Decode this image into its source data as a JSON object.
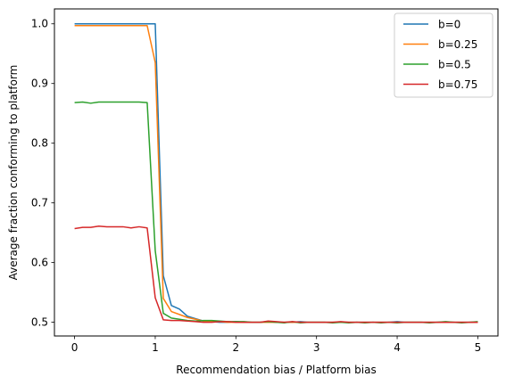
{
  "chart_data": {
    "type": "line",
    "title": "",
    "xlabel": "Recommendation bias / Platform bias",
    "ylabel": "Average fraction conforming to platform",
    "xlim": [
      -0.25,
      5.25
    ],
    "ylim": [
      0.477,
      1.025
    ],
    "grid": false,
    "legend_position": "top-right",
    "x_ticks": [
      0,
      1,
      2,
      3,
      4,
      5
    ],
    "x_tick_labels": [
      "0",
      "1",
      "2",
      "3",
      "4",
      "5"
    ],
    "y_ticks": [
      0.5,
      0.6,
      0.7,
      0.8,
      0.9,
      1.0
    ],
    "y_tick_labels": [
      "0.5",
      "0.6",
      "0.7",
      "0.8",
      "0.9",
      "1.0"
    ],
    "x": [
      0.0,
      0.1,
      0.2,
      0.3,
      0.4,
      0.5,
      0.6,
      0.7,
      0.8,
      0.9,
      1.0,
      1.1,
      1.2,
      1.3,
      1.4,
      1.5,
      1.6,
      1.7,
      1.8,
      1.9,
      2.0,
      2.1,
      2.2,
      2.3,
      2.4,
      2.5,
      2.6,
      2.7,
      2.8,
      2.9,
      3.0,
      3.1,
      3.2,
      3.3,
      3.4,
      3.5,
      3.6,
      3.7,
      3.8,
      3.9,
      4.0,
      4.1,
      4.2,
      4.3,
      4.4,
      4.5,
      4.6,
      4.7,
      4.8,
      4.9,
      5.0
    ],
    "series": [
      {
        "name": "b=0",
        "color": "#1f77b4",
        "values": [
          1.0,
          1.0,
          1.0,
          1.0,
          1.0,
          1.0,
          1.0,
          1.0,
          1.0,
          1.0,
          1.0,
          0.578,
          0.528,
          0.522,
          0.51,
          0.506,
          0.502,
          0.501,
          0.5,
          0.5,
          0.501,
          0.5,
          0.5,
          0.5,
          0.501,
          0.5,
          0.5,
          0.5,
          0.501,
          0.5,
          0.5,
          0.5,
          0.5,
          0.5,
          0.5,
          0.5,
          0.5,
          0.5,
          0.5,
          0.5,
          0.501,
          0.5,
          0.5,
          0.5,
          0.5,
          0.5,
          0.5,
          0.5,
          0.5,
          0.5,
          0.5
        ]
      },
      {
        "name": "b=0.25",
        "color": "#ff7f0e",
        "values": [
          0.997,
          0.997,
          0.997,
          0.997,
          0.997,
          0.997,
          0.997,
          0.997,
          0.997,
          0.997,
          0.935,
          0.54,
          0.518,
          0.513,
          0.508,
          0.505,
          0.502,
          0.502,
          0.501,
          0.5,
          0.5,
          0.5,
          0.5,
          0.5,
          0.5,
          0.5,
          0.5,
          0.5,
          0.5,
          0.5,
          0.5,
          0.5,
          0.5,
          0.5,
          0.5,
          0.5,
          0.5,
          0.5,
          0.5,
          0.5,
          0.5,
          0.5,
          0.5,
          0.5,
          0.5,
          0.5,
          0.5,
          0.5,
          0.5,
          0.5,
          0.5
        ]
      },
      {
        "name": "b=0.5",
        "color": "#2ca02c",
        "values": [
          0.868,
          0.869,
          0.867,
          0.869,
          0.869,
          0.869,
          0.869,
          0.869,
          0.869,
          0.868,
          0.62,
          0.515,
          0.507,
          0.505,
          0.503,
          0.502,
          0.503,
          0.503,
          0.502,
          0.501,
          0.501,
          0.501,
          0.5,
          0.5,
          0.501,
          0.5,
          0.499,
          0.501,
          0.499,
          0.5,
          0.5,
          0.5,
          0.499,
          0.5,
          0.499,
          0.5,
          0.499,
          0.5,
          0.499,
          0.5,
          0.499,
          0.5,
          0.5,
          0.5,
          0.499,
          0.5,
          0.501,
          0.5,
          0.499,
          0.5,
          0.501
        ]
      },
      {
        "name": "b=0.75",
        "color": "#d62728",
        "values": [
          0.657,
          0.659,
          0.659,
          0.661,
          0.66,
          0.66,
          0.66,
          0.658,
          0.66,
          0.658,
          0.541,
          0.504,
          0.503,
          0.503,
          0.502,
          0.501,
          0.5,
          0.5,
          0.501,
          0.501,
          0.5,
          0.5,
          0.5,
          0.5,
          0.502,
          0.501,
          0.5,
          0.501,
          0.5,
          0.5,
          0.5,
          0.5,
          0.5,
          0.501,
          0.5,
          0.5,
          0.5,
          0.5,
          0.5,
          0.5,
          0.5,
          0.5,
          0.5,
          0.5,
          0.5,
          0.5,
          0.5,
          0.5,
          0.5,
          0.5,
          0.5
        ]
      }
    ]
  }
}
